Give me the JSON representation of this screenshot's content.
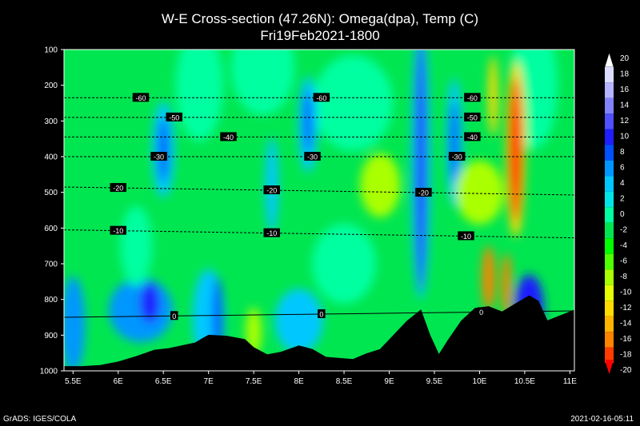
{
  "chart_data": {
    "type": "heatmap",
    "title": "W-E Cross-section (47.26N): Omega(dpa), Temp (C)",
    "subtitle": "Fri19Feb2021-1800",
    "xlabel": "",
    "ylabel": "",
    "x_ticks": [
      "5.5E",
      "6E",
      "6.5E",
      "7E",
      "7.5E",
      "8E",
      "8.5E",
      "9E",
      "9.5E",
      "10E",
      "10.5E",
      "11E"
    ],
    "x_range": [
      5.4,
      11.05
    ],
    "y_ticks": [
      "100",
      "200",
      "300",
      "400",
      "500",
      "600",
      "700",
      "800",
      "900",
      "1000"
    ],
    "y_range": [
      100,
      1000
    ],
    "y_inverted": true,
    "colorbar": {
      "labels": [
        "20",
        "18",
        "16",
        "14",
        "12",
        "10",
        "8",
        "6",
        "4",
        "2",
        "0",
        "-2",
        "-4",
        "-6",
        "-8",
        "-10",
        "-12",
        "-14",
        "-16",
        "-18",
        "-20"
      ],
      "colors": [
        "#ffffff",
        "#dcdcff",
        "#b4b4ff",
        "#8282ff",
        "#5050ff",
        "#1e1eff",
        "#0050ff",
        "#0096ff",
        "#00c8ff",
        "#00e6e6",
        "#00ffa0",
        "#00e650",
        "#00ff00",
        "#50ff00",
        "#aaff00",
        "#e6ff00",
        "#ffdc00",
        "#ffb400",
        "#ff8200",
        "#ff3c00",
        "#ff0000"
      ]
    },
    "temperature_contours": [
      {
        "label": "-60",
        "pressure": 235,
        "label_positions": [
          6.25,
          8.25,
          9.92
        ]
      },
      {
        "label": "-50",
        "pressure": 290,
        "label_positions": [
          6.62,
          9.92
        ]
      },
      {
        "label": "-40",
        "pressure": 345,
        "label_positions": [
          7.22,
          9.92
        ]
      },
      {
        "label": "-30",
        "pressure": 400,
        "label_positions": [
          6.45,
          8.15,
          9.75
        ]
      },
      {
        "label": "-20",
        "pressure": 485,
        "label_positions": [
          6.0,
          7.7,
          9.38
        ]
      },
      {
        "label": "-10",
        "pressure": 605,
        "label_positions": [
          6.0,
          7.7,
          9.85
        ]
      },
      {
        "label": "0",
        "pressure": 850,
        "label_positions": [
          6.62,
          8.25,
          10.02
        ]
      }
    ],
    "terrain": {
      "x": [
        5.4,
        5.6,
        5.8,
        6.0,
        6.2,
        6.4,
        6.55,
        6.7,
        6.85,
        7.0,
        7.2,
        7.4,
        7.5,
        7.65,
        7.8,
        8.0,
        8.15,
        8.3,
        8.45,
        8.6,
        8.75,
        8.9,
        9.05,
        9.2,
        9.35,
        9.45,
        9.55,
        9.65,
        9.8,
        9.95,
        10.1,
        10.25,
        10.4,
        10.55,
        10.65,
        10.75,
        10.85,
        11.05
      ],
      "p": [
        988,
        988,
        985,
        975,
        960,
        942,
        938,
        930,
        922,
        900,
        903,
        912,
        935,
        955,
        948,
        930,
        940,
        962,
        965,
        968,
        952,
        940,
        900,
        860,
        830,
        900,
        955,
        915,
        860,
        825,
        820,
        835,
        812,
        790,
        805,
        860,
        850,
        830
      ]
    }
  },
  "footer": {
    "left": "GrADS: IGES/COLA",
    "right": "2021-02-16-05:11"
  }
}
